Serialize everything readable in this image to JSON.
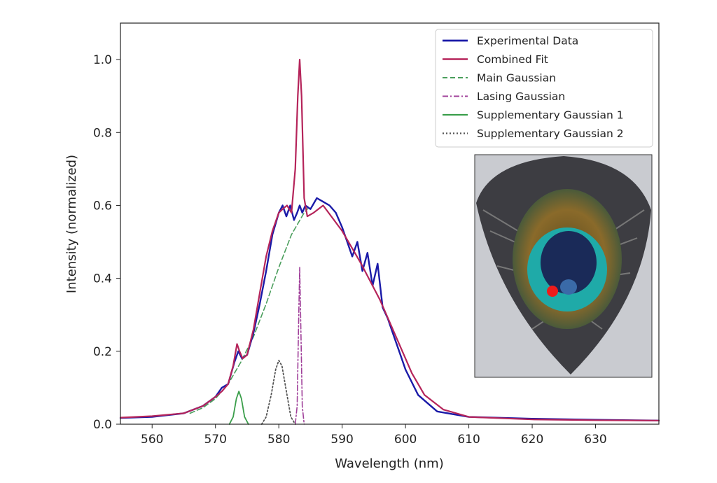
{
  "chart_data": {
    "type": "line",
    "xlabel": "Wavelength (nm)",
    "ylabel": "Intensity (normalized)",
    "xlim": [
      555,
      640
    ],
    "ylim": [
      0,
      1.1
    ],
    "x_ticks": [
      560,
      570,
      580,
      590,
      600,
      610,
      620,
      630
    ],
    "y_ticks": [
      0.0,
      0.2,
      0.4,
      0.6,
      0.8,
      1.0
    ],
    "x_tick_labels": [
      "560",
      "570",
      "580",
      "590",
      "600",
      "610",
      "620",
      "630"
    ],
    "y_tick_labels": [
      "0.0",
      "0.2",
      "0.4",
      "0.6",
      "0.8",
      "1.0"
    ],
    "legend_position": "top-right",
    "inset": "peacock feather eyespot photograph with red marker",
    "colors": {
      "experimental": "#1a1aa8",
      "combined": "#b5245a",
      "main": "#4a9e5c",
      "lasing": "#a0409a",
      "supp1": "#3a9e4a",
      "supp2": "#555555"
    },
    "series": [
      {
        "name": "Experimental Data",
        "style": "solid",
        "x": [
          555,
          560,
          565,
          568,
          570,
          571,
          572,
          573,
          573.6,
          574.2,
          575,
          576,
          577,
          578,
          579,
          580,
          580.6,
          581.2,
          581.8,
          582.4,
          582.9,
          583.3,
          583.7,
          584.2,
          585,
          586,
          587,
          588,
          589,
          590,
          590.8,
          591.6,
          592.4,
          593.2,
          594,
          594.8,
          595.6,
          596.4,
          597.2,
          598,
          599,
          600,
          602,
          605,
          610,
          620,
          630,
          640
        ],
        "values": [
          0.017,
          0.02,
          0.03,
          0.05,
          0.075,
          0.1,
          0.11,
          0.17,
          0.2,
          0.18,
          0.19,
          0.25,
          0.33,
          0.42,
          0.52,
          0.58,
          0.6,
          0.57,
          0.6,
          0.56,
          0.58,
          0.6,
          0.58,
          0.6,
          0.59,
          0.62,
          0.61,
          0.6,
          0.58,
          0.54,
          0.5,
          0.46,
          0.5,
          0.42,
          0.47,
          0.38,
          0.44,
          0.32,
          0.29,
          0.25,
          0.2,
          0.15,
          0.08,
          0.035,
          0.02,
          0.015,
          0.012,
          0.01
        ]
      },
      {
        "name": "Combined Fit",
        "style": "solid",
        "x": [
          555,
          560,
          565,
          568,
          570,
          571,
          572,
          572.8,
          573.4,
          573.8,
          574.3,
          575,
          576,
          577,
          578,
          579,
          580,
          580.6,
          581.3,
          582,
          582.6,
          583,
          583.3,
          583.6,
          584,
          584.5,
          585.5,
          587,
          590,
          593,
          596,
          599,
          601,
          603,
          606,
          610,
          620,
          630,
          640
        ],
        "values": [
          0.018,
          0.022,
          0.03,
          0.05,
          0.075,
          0.09,
          0.11,
          0.16,
          0.22,
          0.2,
          0.18,
          0.19,
          0.26,
          0.36,
          0.46,
          0.53,
          0.58,
          0.59,
          0.6,
          0.58,
          0.7,
          0.9,
          1.0,
          0.9,
          0.62,
          0.57,
          0.58,
          0.6,
          0.53,
          0.44,
          0.34,
          0.22,
          0.14,
          0.08,
          0.04,
          0.02,
          0.013,
          0.011,
          0.01
        ]
      },
      {
        "name": "Main Gaussian",
        "style": "dashed",
        "x": [
          566,
          568,
          570,
          572,
          574,
          576,
          578,
          580,
          582,
          584,
          585
        ],
        "values": [
          0.03,
          0.045,
          0.07,
          0.11,
          0.17,
          0.24,
          0.33,
          0.43,
          0.52,
          0.58,
          0.6
        ]
      },
      {
        "name": "Lasing Gaussian",
        "style": "dashdot",
        "x": [
          582.6,
          582.9,
          583.1,
          583.3,
          583.5,
          583.7,
          584.0
        ],
        "values": [
          0.0,
          0.05,
          0.25,
          0.43,
          0.25,
          0.05,
          0.0
        ]
      },
      {
        "name": "Supplementary Gaussian 1",
        "style": "solid",
        "x": [
          572.2,
          572.8,
          573.3,
          573.7,
          574.1,
          574.6,
          575.2
        ],
        "values": [
          0.0,
          0.02,
          0.07,
          0.09,
          0.07,
          0.02,
          0.0
        ]
      },
      {
        "name": "Supplementary Gaussian 2",
        "style": "dotted",
        "x": [
          577.3,
          578,
          578.8,
          579.5,
          580,
          580.5,
          581.2,
          581.9,
          582.6
        ],
        "values": [
          0.0,
          0.02,
          0.08,
          0.15,
          0.175,
          0.16,
          0.09,
          0.02,
          0.0
        ]
      }
    ]
  }
}
